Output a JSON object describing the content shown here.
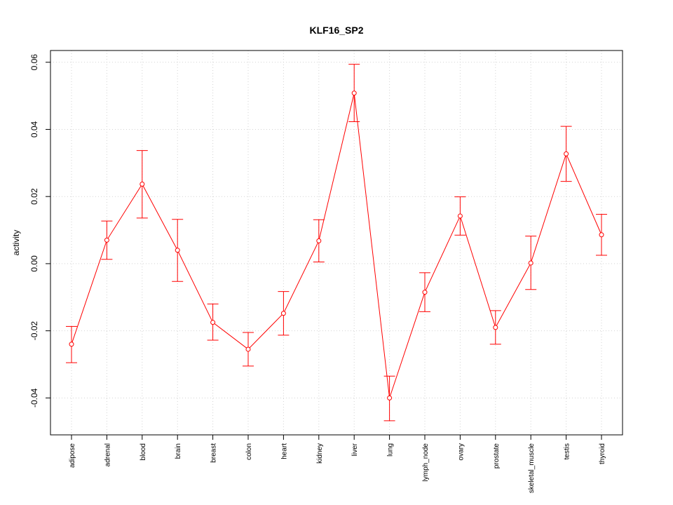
{
  "chart_data": {
    "type": "line",
    "title": "KLF16_SP2",
    "xlabel": "",
    "ylabel": "activity",
    "ylim": [
      -0.051,
      0.0635
    ],
    "yticks": [
      -0.04,
      -0.02,
      0.0,
      0.02,
      0.04,
      0.06
    ],
    "ytick_labels": [
      "-0.04",
      "-0.02",
      "0.00",
      "0.02",
      "0.04",
      "0.06"
    ],
    "grid": true,
    "legend": "none",
    "color": "#ff0000",
    "categories": [
      "adipose",
      "adrenal",
      "blood",
      "brain",
      "breast",
      "colon",
      "heart",
      "kidney",
      "liver",
      "lung",
      "lymph_node",
      "ovary",
      "prostate",
      "skeletal_muscle",
      "testis",
      "thyroid"
    ],
    "values": [
      -0.024,
      0.007,
      0.0237,
      0.004,
      -0.0175,
      -0.0255,
      -0.0148,
      0.0068,
      0.0508,
      -0.04,
      -0.0085,
      0.0142,
      -0.019,
      0.0002,
      0.0327,
      0.0086
    ],
    "error_low": [
      -0.0295,
      0.0013,
      0.0136,
      -0.0053,
      -0.0228,
      -0.0305,
      -0.0213,
      0.0005,
      0.0423,
      -0.0468,
      -0.0143,
      0.0085,
      -0.024,
      -0.0077,
      0.0245,
      0.0025
    ],
    "error_high": [
      -0.0187,
      0.0127,
      0.0337,
      0.0132,
      -0.012,
      -0.0205,
      -0.0083,
      0.0131,
      0.0594,
      -0.0335,
      -0.0027,
      0.0199,
      -0.014,
      0.0082,
      0.0409,
      0.0147
    ]
  }
}
